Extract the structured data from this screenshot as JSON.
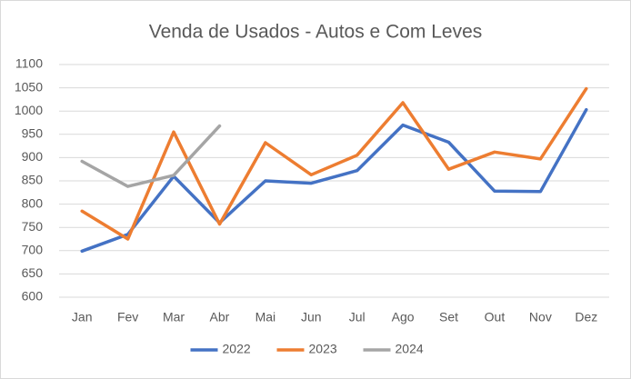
{
  "chart_data": {
    "type": "line",
    "title": "Venda de Usados - Autos e Com Leves",
    "categories": [
      "Jan",
      "Fev",
      "Mar",
      "Abr",
      "Mai",
      "Jun",
      "Jul",
      "Ago",
      "Set",
      "Out",
      "Nov",
      "Dez"
    ],
    "series": [
      {
        "name": "2022",
        "color": "#4472c4",
        "values": [
          699,
          735,
          860,
          760,
          850,
          845,
          872,
          970,
          933,
          828,
          827,
          1003
        ]
      },
      {
        "name": "2023",
        "color": "#ed7d31",
        "values": [
          785,
          725,
          955,
          757,
          932,
          863,
          905,
          1018,
          875,
          912,
          897,
          1048
        ]
      },
      {
        "name": "2024",
        "color": "#a5a5a5",
        "values": [
          892,
          838,
          862,
          968,
          null,
          null,
          null,
          null,
          null,
          null,
          null,
          null
        ]
      }
    ],
    "ylim": [
      600,
      1100
    ],
    "yticks": [
      600,
      650,
      700,
      750,
      800,
      850,
      900,
      950,
      1000,
      1050,
      1100
    ],
    "grid": true,
    "legend": "bottom"
  }
}
